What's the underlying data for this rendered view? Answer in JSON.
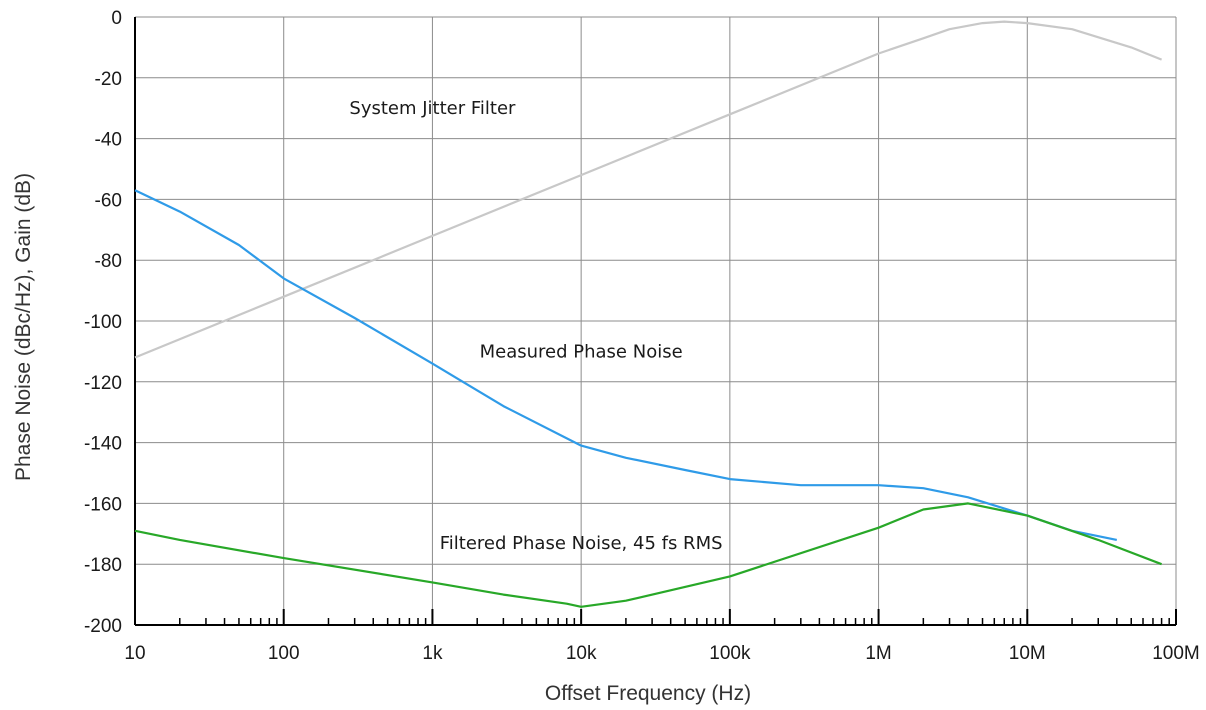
{
  "chart_data": {
    "type": "line",
    "title": "",
    "xlabel": "Offset Frequency (Hz)",
    "ylabel": "Phase Noise (dBc/Hz), Gain (dB)",
    "x_scale": "log",
    "xlim": [
      10,
      100000000
    ],
    "ylim": [
      -200,
      0
    ],
    "grid": true,
    "x_ticks": [
      10,
      100,
      1000,
      10000,
      100000,
      1000000,
      10000000,
      100000000
    ],
    "x_tick_labels": [
      "10",
      "100",
      "1k",
      "10k",
      "100k",
      "1M",
      "10M",
      "100M"
    ],
    "y_ticks": [
      0,
      -20,
      -40,
      -60,
      -80,
      -100,
      -120,
      -140,
      -160,
      -180,
      -200
    ],
    "y_tick_labels": [
      "0",
      "-20",
      "-40",
      "-60",
      "-80",
      "-100",
      "-120",
      "-140",
      "-160",
      "-180",
      "-200"
    ],
    "series": [
      {
        "name": "System Jitter Filter",
        "color": "#c8c8c8",
        "points": [
          [
            10,
            -112
          ],
          [
            100,
            -92
          ],
          [
            1000,
            -72
          ],
          [
            10000,
            -52
          ],
          [
            100000,
            -32
          ],
          [
            1000000,
            -12
          ],
          [
            2000000,
            -7
          ],
          [
            3000000,
            -4
          ],
          [
            5000000,
            -2
          ],
          [
            7000000,
            -1.5
          ],
          [
            10000000,
            -2
          ],
          [
            20000000,
            -4
          ],
          [
            50000000,
            -10
          ],
          [
            80000000,
            -14
          ]
        ]
      },
      {
        "name": "Measured Phase Noise",
        "color": "#2f9be8",
        "points": [
          [
            10,
            -57
          ],
          [
            20,
            -64
          ],
          [
            50,
            -75
          ],
          [
            100,
            -86
          ],
          [
            300,
            -99
          ],
          [
            1000,
            -114
          ],
          [
            3000,
            -128
          ],
          [
            10000,
            -141
          ],
          [
            20000,
            -145
          ],
          [
            50000,
            -149
          ],
          [
            100000,
            -152
          ],
          [
            300000,
            -154
          ],
          [
            1000000,
            -154
          ],
          [
            2000000,
            -155
          ],
          [
            4000000,
            -158
          ],
          [
            10000000,
            -164
          ],
          [
            20000000,
            -169
          ],
          [
            40000000,
            -172
          ]
        ]
      },
      {
        "name": "Filtered Phase Noise, 45 fs RMS",
        "color": "#28a828",
        "points": [
          [
            10,
            -169
          ],
          [
            20,
            -172
          ],
          [
            100,
            -178
          ],
          [
            1000,
            -186
          ],
          [
            3000,
            -190
          ],
          [
            8000,
            -193
          ],
          [
            10000,
            -194
          ],
          [
            20000,
            -192
          ],
          [
            100000,
            -184
          ],
          [
            1000000,
            -168
          ],
          [
            2000000,
            -162
          ],
          [
            4000000,
            -160
          ],
          [
            10000000,
            -164
          ],
          [
            30000000,
            -172
          ],
          [
            80000000,
            -180
          ]
        ]
      }
    ],
    "annotations": [
      {
        "text": "System Jitter Filter",
        "x": 1000,
        "y": -30
      },
      {
        "text": "Measured Phase Noise",
        "x": 10000,
        "y": -110
      },
      {
        "text": "Filtered Phase Noise, 45 fs RMS",
        "x": 10000,
        "y": -173
      }
    ]
  }
}
